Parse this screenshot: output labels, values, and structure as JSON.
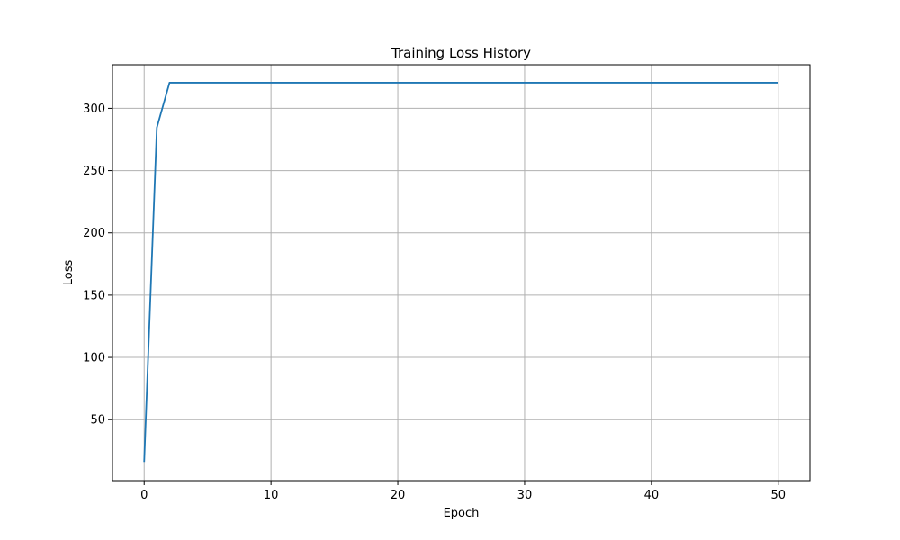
{
  "chart_data": {
    "type": "line",
    "title": "Training Loss History",
    "xlabel": "Epoch",
    "ylabel": "Loss",
    "xlim": [
      -2.5,
      52.5
    ],
    "ylim": [
      1,
      335
    ],
    "xticks": [
      0,
      10,
      20,
      30,
      40,
      50
    ],
    "yticks": [
      50,
      100,
      150,
      200,
      250,
      300
    ],
    "grid": true,
    "series": [
      {
        "color": "#1f77b4",
        "x": [
          0,
          1,
          2,
          3,
          4,
          5,
          6,
          7,
          8,
          9,
          10,
          11,
          12,
          13,
          14,
          15,
          16,
          17,
          18,
          19,
          20,
          21,
          22,
          23,
          24,
          25,
          26,
          27,
          28,
          29,
          30,
          31,
          32,
          33,
          34,
          35,
          36,
          37,
          38,
          39,
          40,
          41,
          42,
          43,
          44,
          45,
          46,
          47,
          48,
          49,
          50
        ],
        "y": [
          16,
          284.5,
          320.6,
          320.6,
          320.6,
          320.6,
          320.6,
          320.6,
          320.6,
          320.6,
          320.6,
          320.6,
          320.6,
          320.6,
          320.6,
          320.6,
          320.6,
          320.6,
          320.6,
          320.6,
          320.6,
          320.6,
          320.6,
          320.6,
          320.6,
          320.6,
          320.6,
          320.6,
          320.6,
          320.6,
          320.6,
          320.6,
          320.6,
          320.6,
          320.6,
          320.6,
          320.6,
          320.6,
          320.6,
          320.6,
          320.6,
          320.6,
          320.6,
          320.6,
          320.6,
          320.6,
          320.6,
          320.6,
          320.6,
          320.6,
          320.6
        ]
      }
    ]
  }
}
